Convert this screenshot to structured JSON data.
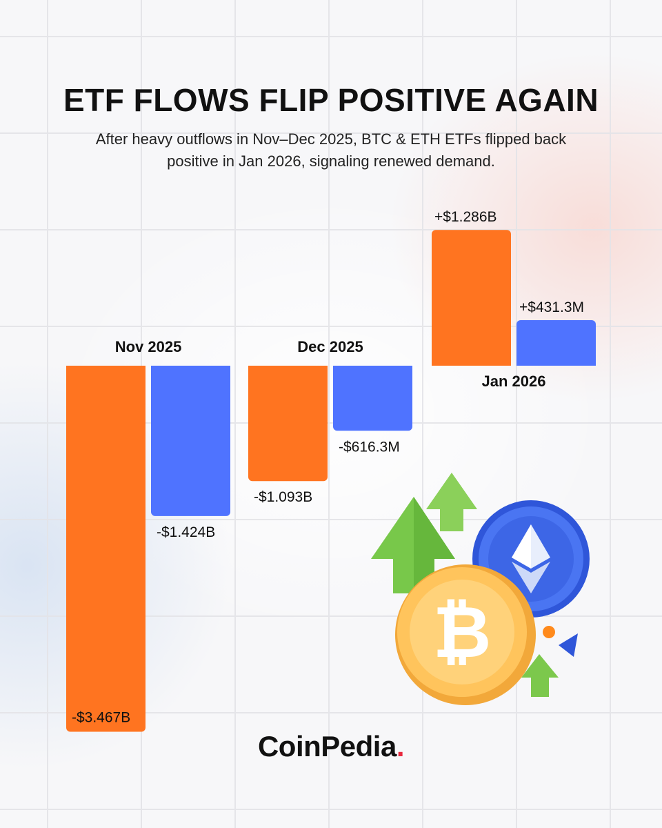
{
  "header": {
    "title": "ETF FLOWS FLIP POSITIVE AGAIN",
    "subtitle": "After heavy outflows in Nov–Dec 2025, BTC & ETH ETFs flipped back positive in Jan 2026, signaling renewed demand."
  },
  "brand": {
    "name": "CoinPedia",
    "dot": ".",
    "dot_color": "#e8293f"
  },
  "chart_data": {
    "type": "bar",
    "title": "ETF FLOWS FLIP POSITIVE AGAIN",
    "categories": [
      "Nov 2025",
      "Dec 2025",
      "Jan 2026"
    ],
    "series": [
      {
        "values": [
          -3.467,
          -1.093,
          1.286
        ],
        "labels": [
          "-$3.467B",
          "-$1.093B",
          "+$1.286B"
        ],
        "color": "#ff7420"
      },
      {
        "values": [
          -1.424,
          -0.6163,
          0.4313
        ],
        "labels": [
          "-$1.424B",
          "-$616.3M",
          "+$431.3M"
        ],
        "color": "#4f73ff"
      }
    ],
    "unit": "USD billions",
    "grid": false,
    "legend": "none"
  },
  "illustration": {
    "icons": [
      "bitcoin-coin-icon",
      "ethereum-coin-icon",
      "up-arrow-icon"
    ]
  }
}
